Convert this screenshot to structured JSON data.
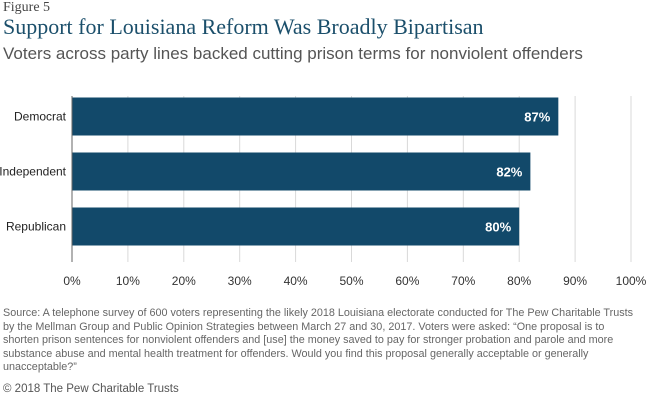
{
  "figure_label": "Figure 5",
  "chart_data": {
    "type": "bar",
    "orientation": "horizontal",
    "title": "Support for Louisiana Reform Was Broadly Bipartisan",
    "subtitle": "Voters across party lines backed cutting prison terms for nonviolent offenders",
    "categories": [
      "Democrat",
      "Independent",
      "Republican"
    ],
    "values": [
      87,
      82,
      80
    ],
    "value_labels": [
      "87%",
      "82%",
      "80%"
    ],
    "xlim": [
      0,
      100
    ],
    "x_ticks": [
      "0%",
      "10%",
      "20%",
      "30%",
      "40%",
      "50%",
      "60%",
      "70%",
      "80%",
      "90%",
      "100%"
    ],
    "xlabel": "",
    "ylabel": "",
    "grid": true,
    "bar_color": "#12496a"
  },
  "source": "Source: A telephone survey of 600 voters representing the likely 2018 Louisiana electorate conducted for The Pew Charitable Trusts by the Mellman Group and Public Opinion Strategies between March 27 and 30, 2017. Voters were asked: “One proposal is to shorten prison sentences for nonviolent offenders and [use] the money saved to pay for stronger probation and parole and more substance abuse and mental health treatment for offenders. Would you find this proposal generally acceptable or generally unacceptable?”",
  "copyright": "© 2018 The Pew Charitable Trusts"
}
